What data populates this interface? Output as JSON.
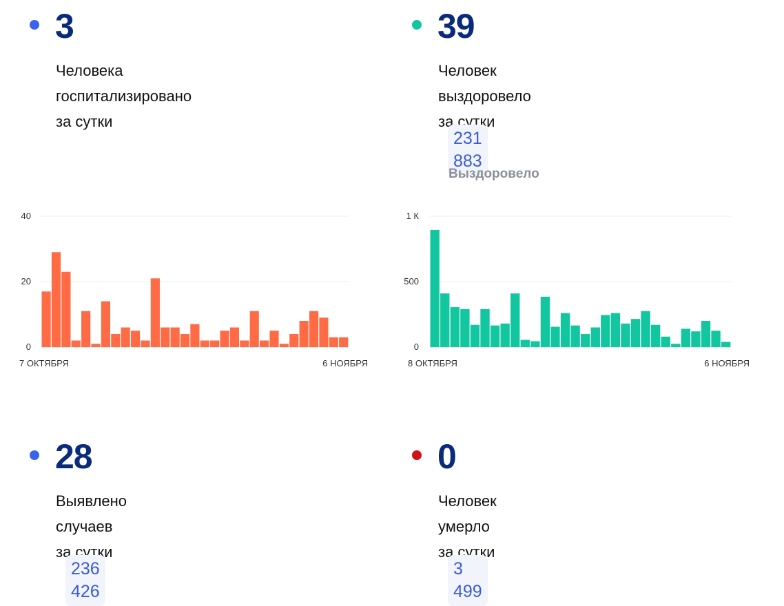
{
  "cards": {
    "hospitalized": {
      "value": "3",
      "line1": "Человека госпитализировано",
      "line2": "за сутки",
      "dot_color": "#3a63f0"
    },
    "recovered": {
      "value": "39",
      "line1": "Человек выздоровело",
      "line2": "за сутки",
      "total": "231 883",
      "total_caption": "Выздоровело",
      "dot_color": "#12c7a0"
    },
    "cases": {
      "value": "28",
      "line1": "Выявлено случаев",
      "line2": "за сутки",
      "total": "236 426",
      "dot_color": "#3a63f0"
    },
    "deaths": {
      "value": "0",
      "line1": "Человек умерло",
      "line2": "за сутки",
      "total": "3 499",
      "dot_color": "#d0121b"
    }
  },
  "chart_data": [
    {
      "type": "bar",
      "color": "#ff6b45",
      "x_start_label": "7 ОКТЯБРЯ",
      "x_end_label": "6 НОЯБРЯ",
      "ylim": [
        0,
        40
      ],
      "yticks": [
        {
          "value": 0,
          "label": "0"
        },
        {
          "value": 20,
          "label": "20"
        },
        {
          "value": 40,
          "label": "40"
        }
      ],
      "values": [
        17,
        29,
        23,
        2,
        11,
        1,
        14,
        4,
        6,
        5,
        2,
        21,
        6,
        6,
        4,
        7,
        2,
        2,
        5,
        6,
        2,
        11,
        2,
        5,
        1,
        4,
        8,
        11,
        9,
        3,
        3
      ]
    },
    {
      "type": "bar",
      "color": "#12c7a0",
      "x_start_label": "8 ОКТЯБРЯ",
      "x_end_label": "6 НОЯБРЯ",
      "ylim": [
        0,
        1000
      ],
      "yticks": [
        {
          "value": 0,
          "label": "0"
        },
        {
          "value": 500,
          "label": "500"
        },
        {
          "value": 1000,
          "label": "1 К"
        }
      ],
      "values": [
        895,
        410,
        305,
        290,
        170,
        290,
        165,
        180,
        410,
        55,
        45,
        385,
        155,
        260,
        165,
        100,
        150,
        245,
        260,
        180,
        215,
        275,
        170,
        80,
        25,
        140,
        120,
        200,
        125,
        40
      ]
    }
  ]
}
